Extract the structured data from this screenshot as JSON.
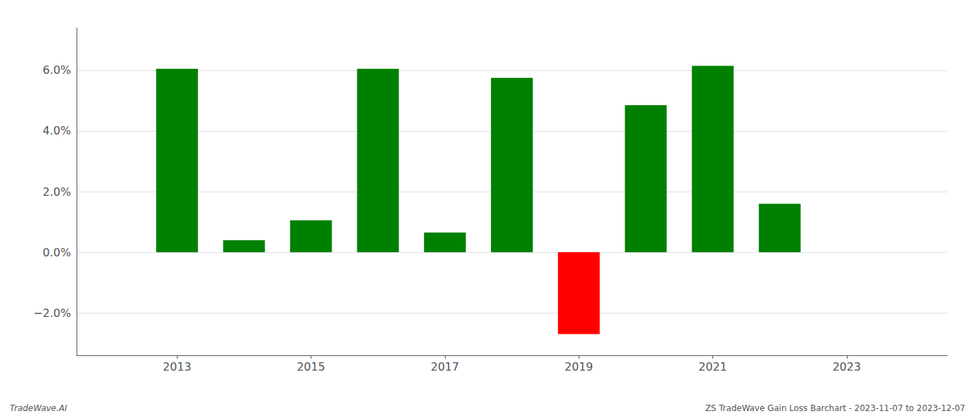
{
  "chart_data": {
    "type": "bar",
    "x": [
      2013,
      2014,
      2015,
      2016,
      2017,
      2018,
      2019,
      2020,
      2021,
      2022
    ],
    "values": [
      0.0605,
      0.004,
      0.0105,
      0.0605,
      0.0065,
      0.0575,
      -0.027,
      0.0485,
      0.0615,
      0.016
    ],
    "colors": [
      "#008000",
      "#008000",
      "#008000",
      "#008000",
      "#008000",
      "#008000",
      "#ff0000",
      "#008000",
      "#008000",
      "#008000"
    ],
    "xlim": [
      2011.5,
      2024.5
    ],
    "xticks": [
      2013,
      2015,
      2017,
      2019,
      2021,
      2023
    ],
    "ylim": [
      -0.034,
      0.074
    ],
    "yticks": [
      {
        "value": -0.02,
        "label": "−2.0%"
      },
      {
        "value": 0.0,
        "label": "0.0%"
      },
      {
        "value": 0.02,
        "label": "2.0%"
      },
      {
        "value": 0.04,
        "label": "4.0%"
      },
      {
        "value": 0.06,
        "label": "6.0%"
      }
    ],
    "grid": true,
    "annotations": [
      "TradeWave.AI",
      "ZS TradeWave Gain Loss Barchart - 2023-11-07 to 2023-12-07"
    ]
  }
}
